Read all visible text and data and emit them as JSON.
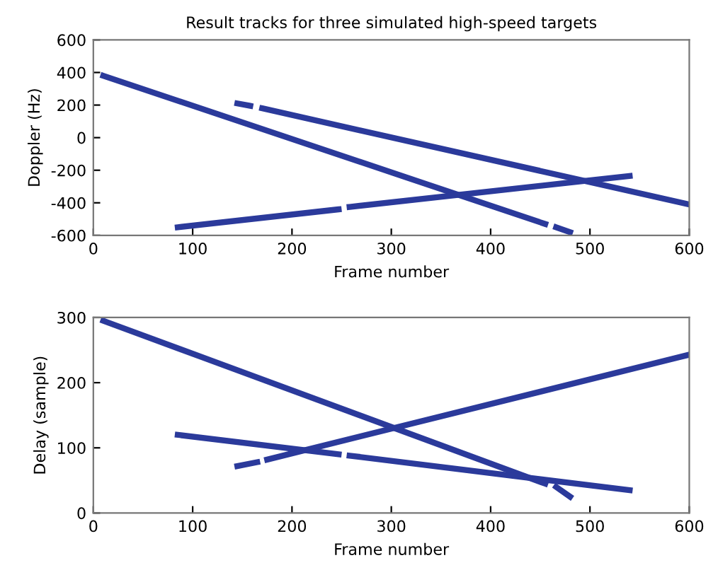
{
  "chart_data": [
    {
      "type": "line",
      "title": "Result tracks for three simulated high-speed targets",
      "xlabel": "Frame number",
      "ylabel": "Doppler (Hz)",
      "xlim": [
        0,
        600
      ],
      "ylim": [
        -600,
        600
      ],
      "xticks": [
        0,
        100,
        200,
        300,
        400,
        500,
        600
      ],
      "yticks": [
        -600,
        -400,
        -200,
        0,
        200,
        400,
        600
      ],
      "grid": false,
      "legend": false,
      "marker": "none",
      "line_style": "solid",
      "series": [
        {
          "color": "#2b3a9b",
          "x": [
            10,
            455,
            460,
            466,
            480
          ],
          "values": [
            380,
            -530,
            null,
            -550,
            -580
          ]
        },
        {
          "color": "#2b3a9b",
          "x": [
            145,
            158,
            162,
            170,
            600
          ],
          "values": [
            210,
            195,
            null,
            180,
            -410
          ]
        },
        {
          "color": "#2b3a9b",
          "x": [
            85,
            247,
            252,
            258,
            540
          ],
          "values": [
            -550,
            -440,
            null,
            -425,
            -235
          ]
        }
      ]
    },
    {
      "type": "line",
      "xlabel": "Frame number",
      "ylabel": "Delay (sample)",
      "xlim": [
        0,
        600
      ],
      "ylim": [
        0,
        300
      ],
      "xticks": [
        0,
        100,
        200,
        300,
        400,
        500,
        600
      ],
      "yticks": [
        0,
        100,
        200,
        300
      ],
      "grid": false,
      "legend": false,
      "marker": "none",
      "line_style": "solid",
      "series": [
        {
          "color": "#2b3a9b",
          "x": [
            10,
            455,
            460,
            466,
            480
          ],
          "values": [
            295,
            45,
            null,
            40,
            25
          ]
        },
        {
          "color": "#2b3a9b",
          "x": [
            145,
            165,
            170,
            175,
            600
          ],
          "values": [
            72,
            78,
            null,
            82,
            243
          ]
        },
        {
          "color": "#2b3a9b",
          "x": [
            85,
            247,
            252,
            258,
            540
          ],
          "values": [
            120,
            90,
            null,
            88,
            35
          ]
        }
      ]
    }
  ]
}
